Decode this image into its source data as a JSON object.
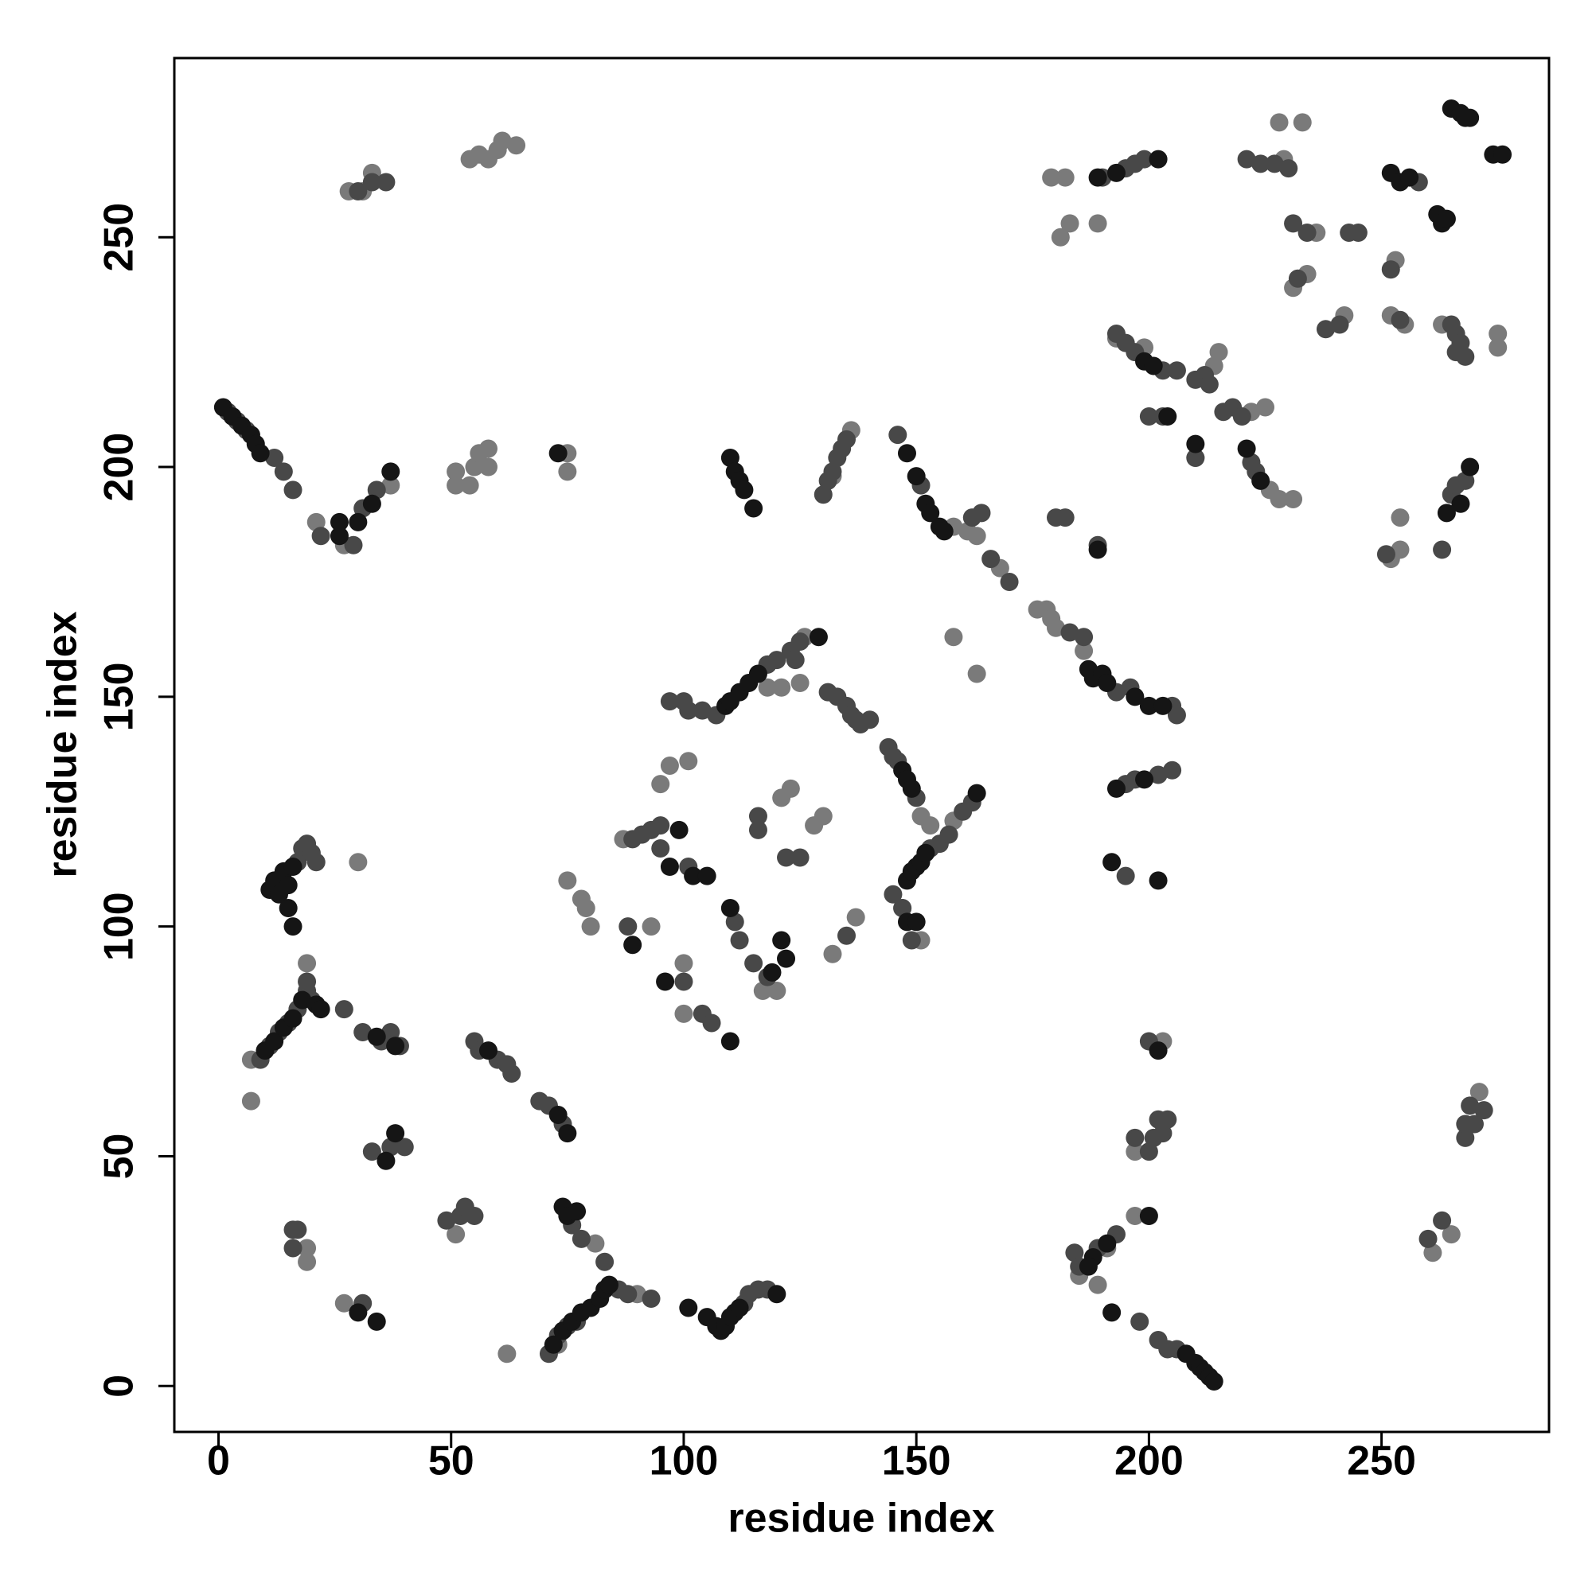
{
  "chart_data": {
    "type": "scatter",
    "xlabel": "residue index",
    "ylabel": "residue index",
    "xlim": [
      -9.5,
      286
    ],
    "ylim": [
      -10,
      289
    ],
    "xticks": [
      0,
      50,
      100,
      150,
      200,
      250
    ],
    "yticks": [
      0,
      50,
      100,
      150,
      200,
      250
    ],
    "series": [
      {
        "color": "#7a7a7a",
        "x": [
          7,
          19,
          19,
          27,
          30,
          19,
          7,
          21,
          27,
          37,
          28,
          31,
          33,
          54,
          56,
          58,
          60,
          61,
          64,
          51,
          51,
          54,
          55,
          56,
          58,
          58,
          75,
          75,
          51,
          62,
          81,
          90,
          73,
          75,
          78,
          79,
          80,
          87,
          97,
          101,
          95,
          93,
          100,
          100,
          117,
          120,
          132,
          137,
          121,
          123,
          128,
          130,
          118,
          121,
          125,
          126,
          118,
          136,
          132,
          158,
          151,
          153,
          151,
          147,
          158,
          161,
          163,
          168,
          176,
          178,
          179,
          180,
          186,
          158,
          163,
          179,
          182,
          181,
          183,
          189,
          193,
          199,
          214,
          215,
          210,
          225,
          226,
          228,
          231,
          222,
          229,
          228,
          233,
          236,
          234,
          231,
          242,
          253,
          252,
          255,
          275,
          275,
          263,
          254,
          254,
          252,
          185,
          189,
          197,
          197,
          203,
          261,
          265,
          271,
          191
        ],
        "values": [
          62,
          27,
          30,
          18,
          114,
          92,
          71,
          188,
          183,
          196,
          260,
          260,
          264,
          267,
          268,
          267,
          269,
          271,
          270,
          196,
          199,
          196,
          200,
          203,
          204,
          200,
          203,
          199,
          33,
          7,
          31,
          20,
          9,
          110,
          106,
          104,
          100,
          119,
          135,
          136,
          131,
          100,
          92,
          81,
          86,
          86,
          94,
          102,
          128,
          130,
          122,
          124,
          152,
          152,
          153,
          163,
          157,
          208,
          198,
          123,
          124,
          122,
          97,
          104,
          187,
          186,
          185,
          178,
          169,
          169,
          167,
          165,
          160,
          163,
          155,
          263,
          263,
          250,
          253,
          253,
          228,
          226,
          222,
          225,
          202,
          213,
          195,
          193,
          193,
          212,
          267,
          275,
          275,
          251,
          242,
          239,
          233,
          245,
          233,
          231,
          229,
          226,
          231,
          189,
          182,
          180,
          24,
          22,
          37,
          51,
          75,
          29,
          33,
          64,
          30
        ]
      },
      {
        "color": "#484848",
        "x": [
          2,
          4,
          6,
          12,
          14,
          16,
          17,
          18,
          19,
          20,
          21,
          9,
          11,
          13,
          15,
          17,
          19,
          19,
          20,
          27,
          31,
          35,
          37,
          39,
          33,
          37,
          40,
          16,
          17,
          16,
          31,
          22,
          29,
          31,
          34,
          33,
          36,
          30,
          55,
          56,
          60,
          62,
          63,
          69,
          71,
          74,
          52,
          53,
          55,
          49,
          71,
          73,
          75,
          77,
          76,
          78,
          83,
          86,
          88,
          93,
          113,
          114,
          116,
          118,
          97,
          100,
          101,
          104,
          107,
          118,
          120,
          123,
          125,
          124,
          131,
          133,
          135,
          136,
          137,
          138,
          140,
          89,
          91,
          93,
          95,
          95,
          101,
          88,
          111,
          112,
          115,
          118,
          100,
          104,
          106,
          116,
          116,
          122,
          125,
          135,
          144,
          145,
          146,
          150,
          153,
          155,
          157,
          160,
          162,
          145,
          147,
          149,
          146,
          151,
          162,
          164,
          166,
          170,
          183,
          186,
          193,
          196,
          205,
          206,
          130,
          131,
          132,
          133,
          134,
          135,
          180,
          182,
          189,
          195,
          197,
          202,
          205,
          195,
          190,
          195,
          197,
          199,
          193,
          195,
          197,
          203,
          206,
          200,
          203,
          210,
          212,
          213,
          210,
          216,
          218,
          220,
          222,
          223,
          221,
          224,
          227,
          230,
          231,
          234,
          232,
          238,
          241,
          243,
          245,
          252,
          254,
          258,
          265,
          266,
          267,
          268,
          266,
          265,
          266,
          268,
          263,
          251,
          184,
          185,
          189,
          193,
          198,
          202,
          204,
          206,
          200,
          197,
          200,
          201,
          202,
          204,
          203,
          260,
          263,
          268,
          268,
          269,
          270,
          272
        ],
        "values": [
          212,
          210,
          208,
          202,
          199,
          195,
          114,
          117,
          118,
          116,
          114,
          71,
          74,
          77,
          79,
          82,
          86,
          88,
          84,
          82,
          77,
          75,
          77,
          74,
          51,
          52,
          52,
          34,
          34,
          30,
          18,
          185,
          183,
          191,
          195,
          262,
          262,
          260,
          75,
          73,
          71,
          70,
          68,
          62,
          61,
          57,
          37,
          39,
          37,
          36,
          7,
          11,
          13,
          14,
          35,
          32,
          27,
          21,
          20,
          19,
          18,
          20,
          21,
          21,
          149,
          149,
          147,
          147,
          146,
          157,
          158,
          160,
          162,
          158,
          151,
          150,
          148,
          146,
          145,
          144,
          145,
          119,
          120,
          121,
          122,
          117,
          113,
          100,
          101,
          97,
          92,
          89,
          88,
          81,
          79,
          124,
          121,
          115,
          115,
          98,
          139,
          137,
          136,
          128,
          117,
          118,
          120,
          125,
          127,
          107,
          104,
          97,
          207,
          196,
          189,
          190,
          180,
          175,
          164,
          163,
          151,
          152,
          148,
          146,
          194,
          197,
          199,
          202,
          204,
          206,
          189,
          189,
          183,
          131,
          132,
          133,
          134,
          111,
          263,
          265,
          266,
          267,
          229,
          227,
          225,
          221,
          221,
          211,
          211,
          219,
          220,
          218,
          202,
          212,
          213,
          211,
          201,
          199,
          267,
          266,
          266,
          265,
          253,
          251,
          241,
          230,
          231,
          251,
          251,
          243,
          232,
          262,
          231,
          229,
          227,
          224,
          225,
          194,
          196,
          197,
          182,
          181,
          29,
          26,
          30,
          33,
          14,
          10,
          8,
          8,
          75,
          54,
          51,
          54,
          58,
          58,
          55,
          32,
          36,
          54,
          57,
          61,
          57,
          60
        ]
      },
      {
        "color": "#151515",
        "x": [
          1,
          3,
          5,
          7,
          8,
          9,
          11,
          12,
          13,
          14,
          15,
          16,
          16,
          15,
          10,
          12,
          14,
          16,
          18,
          21,
          22,
          34,
          38,
          30,
          34,
          36,
          38,
          72,
          74,
          76,
          78,
          80,
          82,
          83,
          74,
          75,
          77,
          84,
          101,
          105,
          107,
          108,
          109,
          110,
          111,
          112,
          120,
          110,
          111,
          112,
          113,
          115,
          148,
          150,
          152,
          153,
          155,
          156,
          147,
          148,
          149,
          148,
          149,
          150,
          151,
          152,
          148,
          150,
          187,
          188,
          190,
          191,
          197,
          200,
          203,
          109,
          110,
          112,
          114,
          116,
          129,
          99,
          97,
          102,
          105,
          110,
          121,
          122,
          119,
          200,
          192,
          208,
          210,
          211,
          212,
          213,
          214,
          202,
          188,
          187,
          191,
          252,
          254,
          256,
          262,
          263,
          264,
          265,
          267,
          268,
          269,
          274,
          276,
          269,
          267,
          264,
          189,
          193,
          202,
          199,
          202,
          192,
          193,
          199,
          201,
          204,
          210,
          221,
          224,
          30,
          33,
          26,
          26,
          37,
          73,
          58,
          73,
          75,
          89,
          96,
          110,
          163,
          189
        ],
        "values": [
          213,
          211,
          209,
          207,
          205,
          203,
          108,
          110,
          107,
          112,
          109,
          113,
          100,
          104,
          73,
          75,
          78,
          80,
          84,
          83,
          82,
          76,
          74,
          16,
          14,
          49,
          55,
          9,
          12,
          14,
          16,
          17,
          19,
          21,
          39,
          37,
          38,
          22,
          17,
          15,
          13,
          12,
          13,
          15,
          16,
          17,
          20,
          202,
          199,
          197,
          195,
          191,
          203,
          198,
          192,
          190,
          187,
          186,
          134,
          132,
          130,
          110,
          112,
          113,
          114,
          116,
          101,
          101,
          156,
          154,
          155,
          153,
          150,
          148,
          148,
          148,
          149,
          151,
          153,
          155,
          163,
          121,
          113,
          111,
          111,
          104,
          97,
          93,
          90,
          37,
          16,
          7,
          5,
          4,
          3,
          2,
          1,
          73,
          28,
          26,
          31,
          264,
          262,
          263,
          255,
          253,
          254,
          278,
          277,
          276,
          276,
          268,
          268,
          200,
          192,
          190,
          263,
          264,
          267,
          132,
          110,
          114,
          130,
          223,
          222,
          211,
          205,
          204,
          197,
          188,
          192,
          185,
          188,
          199,
          203,
          73,
          59,
          55,
          96,
          88,
          75,
          129,
          182
        ]
      }
    ]
  }
}
